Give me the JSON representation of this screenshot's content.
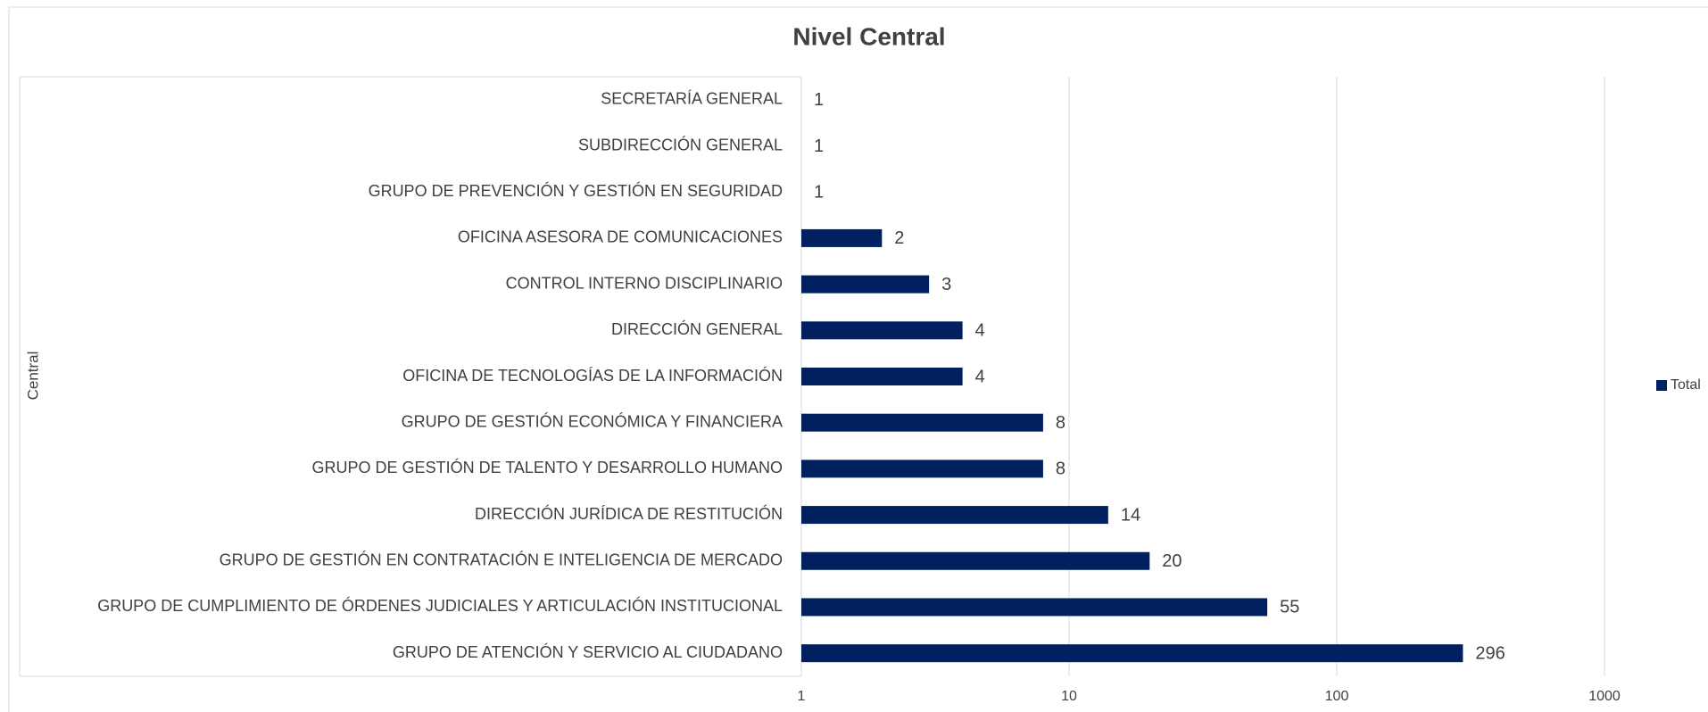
{
  "chart_data": {
    "type": "bar",
    "orientation": "horizontal",
    "title": "Nivel Central",
    "y_axis_label": "Central",
    "categories": [
      "SECRETARÍA GENERAL",
      "SUBDIRECCIÓN GENERAL",
      "GRUPO DE PREVENCIÓN Y GESTIÓN EN SEGURIDAD",
      "OFICINA ASESORA DE COMUNICACIONES",
      "CONTROL INTERNO DISCIPLINARIO",
      "DIRECCIÓN GENERAL",
      "OFICINA DE TECNOLOGÍAS DE LA INFORMACIÓN",
      "GRUPO DE GESTIÓN ECONÓMICA Y FINANCIERA",
      "GRUPO DE GESTIÓN DE TALENTO Y DESARROLLO HUMANO",
      "DIRECCIÓN JURÍDICA DE RESTITUCIÓN",
      "GRUPO DE GESTIÓN EN CONTRATACIÓN E INTELIGENCIA DE MERCADO",
      "GRUPO DE CUMPLIMIENTO DE ÓRDENES JUDICIALES Y ARTICULACIÓN INSTITUCIONAL",
      "GRUPO DE ATENCIÓN Y SERVICIO AL CIUDADANO"
    ],
    "series": [
      {
        "name": "Total",
        "color": "#002060",
        "values": [
          1,
          1,
          1,
          2,
          3,
          4,
          4,
          8,
          8,
          14,
          20,
          55,
          296
        ]
      }
    ],
    "xlim": [
      1,
      1000
    ],
    "xticks": [
      1,
      10,
      100,
      1000
    ],
    "x_scale": "log",
    "grid": true,
    "legend": "right"
  }
}
